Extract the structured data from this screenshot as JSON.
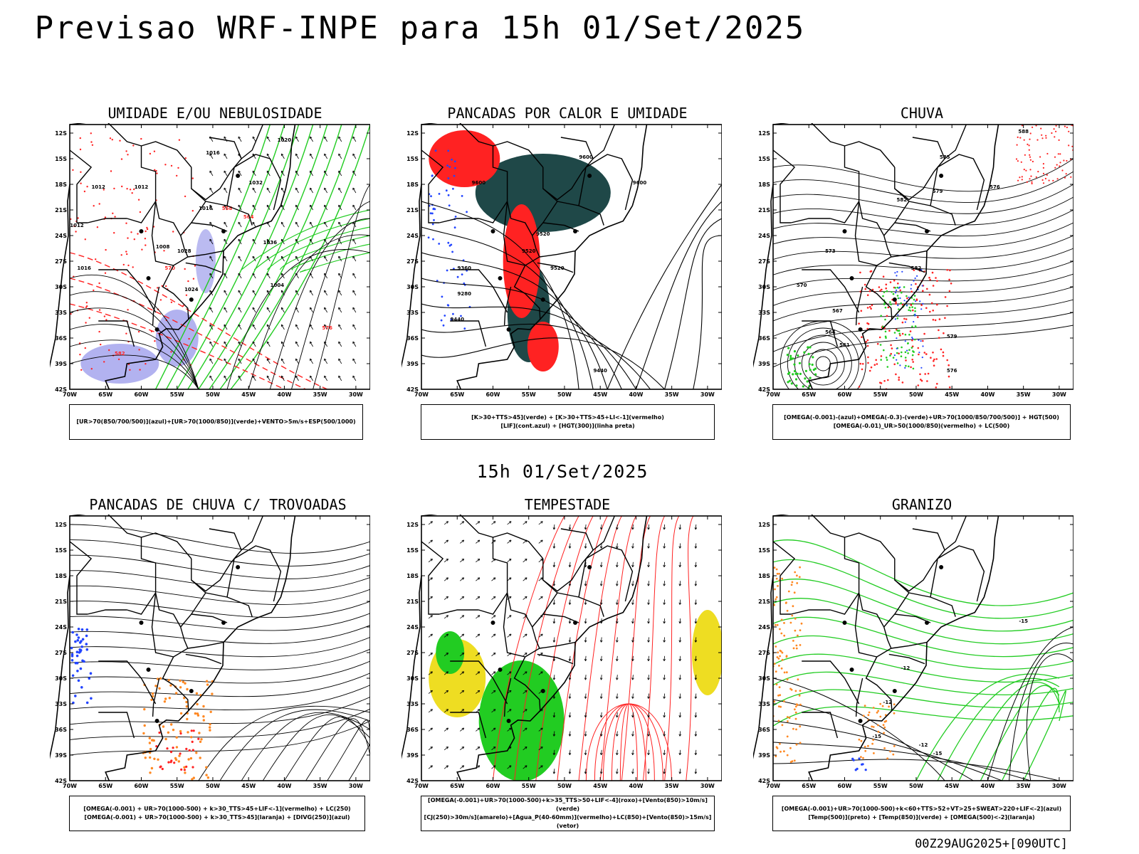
{
  "title": "Previsao WRF-INPE  para 15h 01/Set/2025",
  "middle_title": "15h 01/Set/2025",
  "footer": "00Z29AUG2025+[090UTC]",
  "lat_ticks": [
    "12S",
    "15S",
    "18S",
    "21S",
    "24S",
    "27S",
    "30S",
    "33S",
    "36S",
    "39S",
    "42S"
  ],
  "lon_ticks": [
    "70W",
    "65W",
    "60W",
    "55W",
    "50W",
    "45W",
    "40W",
    "35W",
    "30W"
  ],
  "colors": {
    "blue": "#2244ff",
    "green": "#22cc22",
    "red": "#ff2222",
    "darkteal": "#1f4848",
    "yellow": "#eedd22",
    "orange": "#ff8822",
    "lavender": "#aaaaee",
    "black": "#000000"
  },
  "panels": [
    {
      "title": "UMIDADE E/OU NEBULOSIDADE",
      "legend": [
        "[UR>70(850/700/500)](azul)+[UR>70(1000/850)](verde)+VENTO>5m/s+ESP(500/1000)"
      ],
      "labels": [
        "1016",
        "1020",
        "1012",
        "1012",
        "1016",
        "1012",
        "1008",
        "1016",
        "1024",
        "1028",
        "1032",
        "1036",
        "1004",
        "576",
        "582",
        "564",
        "558",
        "570"
      ]
    },
    {
      "title": "PANCADAS POR CALOR E UMIDADE",
      "legend": [
        "[K>30+TTS>45](verde) + [K>30+TTS>45+LI<-1](vermelho)",
        "[LIF](cont.azul) + [HGT(300)](linha preta)"
      ],
      "labels": [
        "9600",
        "9600",
        "9600",
        "9520",
        "9520",
        "9440",
        "9360",
        "9280",
        "9440",
        "9520"
      ]
    },
    {
      "title": "CHUVA",
      "legend": [
        "[OMEGA(-0.001)-(azul)+OMEGA(-0.3)-(verde)+UR>70(1000/850/700/500)] + HGT(500)",
        "[OMEGA(-0.01)_UR>50(1000/850)(vermelho) + LC(500)"
      ],
      "labels": [
        "588",
        "585",
        "582",
        "579",
        "576",
        "573",
        "570",
        "567",
        "564",
        "561",
        "582",
        "579",
        "576"
      ]
    },
    {
      "title": "PANCADAS DE CHUVA C/ TROVOADAS",
      "legend": [
        "[OMEGA(-0.001) + UR>70(1000-500) + k>30_TTS>45+LIF<-1](vermelho) + LC(250)",
        "[OMEGA(-0.001) + UR>70(1000-500) + k>30_TTS>45](laranja) + [DIVG(250)](azul)"
      ],
      "labels": []
    },
    {
      "title": "TEMPESTADE",
      "legend": [
        "[OMEGA(-0.001)+UR>70(1000-500)+k>35_TTS>50+LIF<-4](roxo)+[Vento(850)>10m/s](verde)",
        "[CJ(250)>30m/s](amarelo)+[Agua_P(40-60mm)](vermelho)+LC(850)+[Vento(850)>15m/s](vetor)"
      ],
      "labels": []
    },
    {
      "title": "GRANIZO",
      "legend": [
        "[OMEGA(-0.001)+UR>70(1000-500)+k<60+TTS>52+VT>25+SWEAT>220+LIF<-2](azul)",
        "[Temp(500)](preto) + [Temp(850)](verde) + [OMEGA(500)<-2](laranja)"
      ],
      "labels": [
        "-15",
        "-12",
        "-12",
        "-15",
        "-12",
        "-15"
      ]
    }
  ]
}
